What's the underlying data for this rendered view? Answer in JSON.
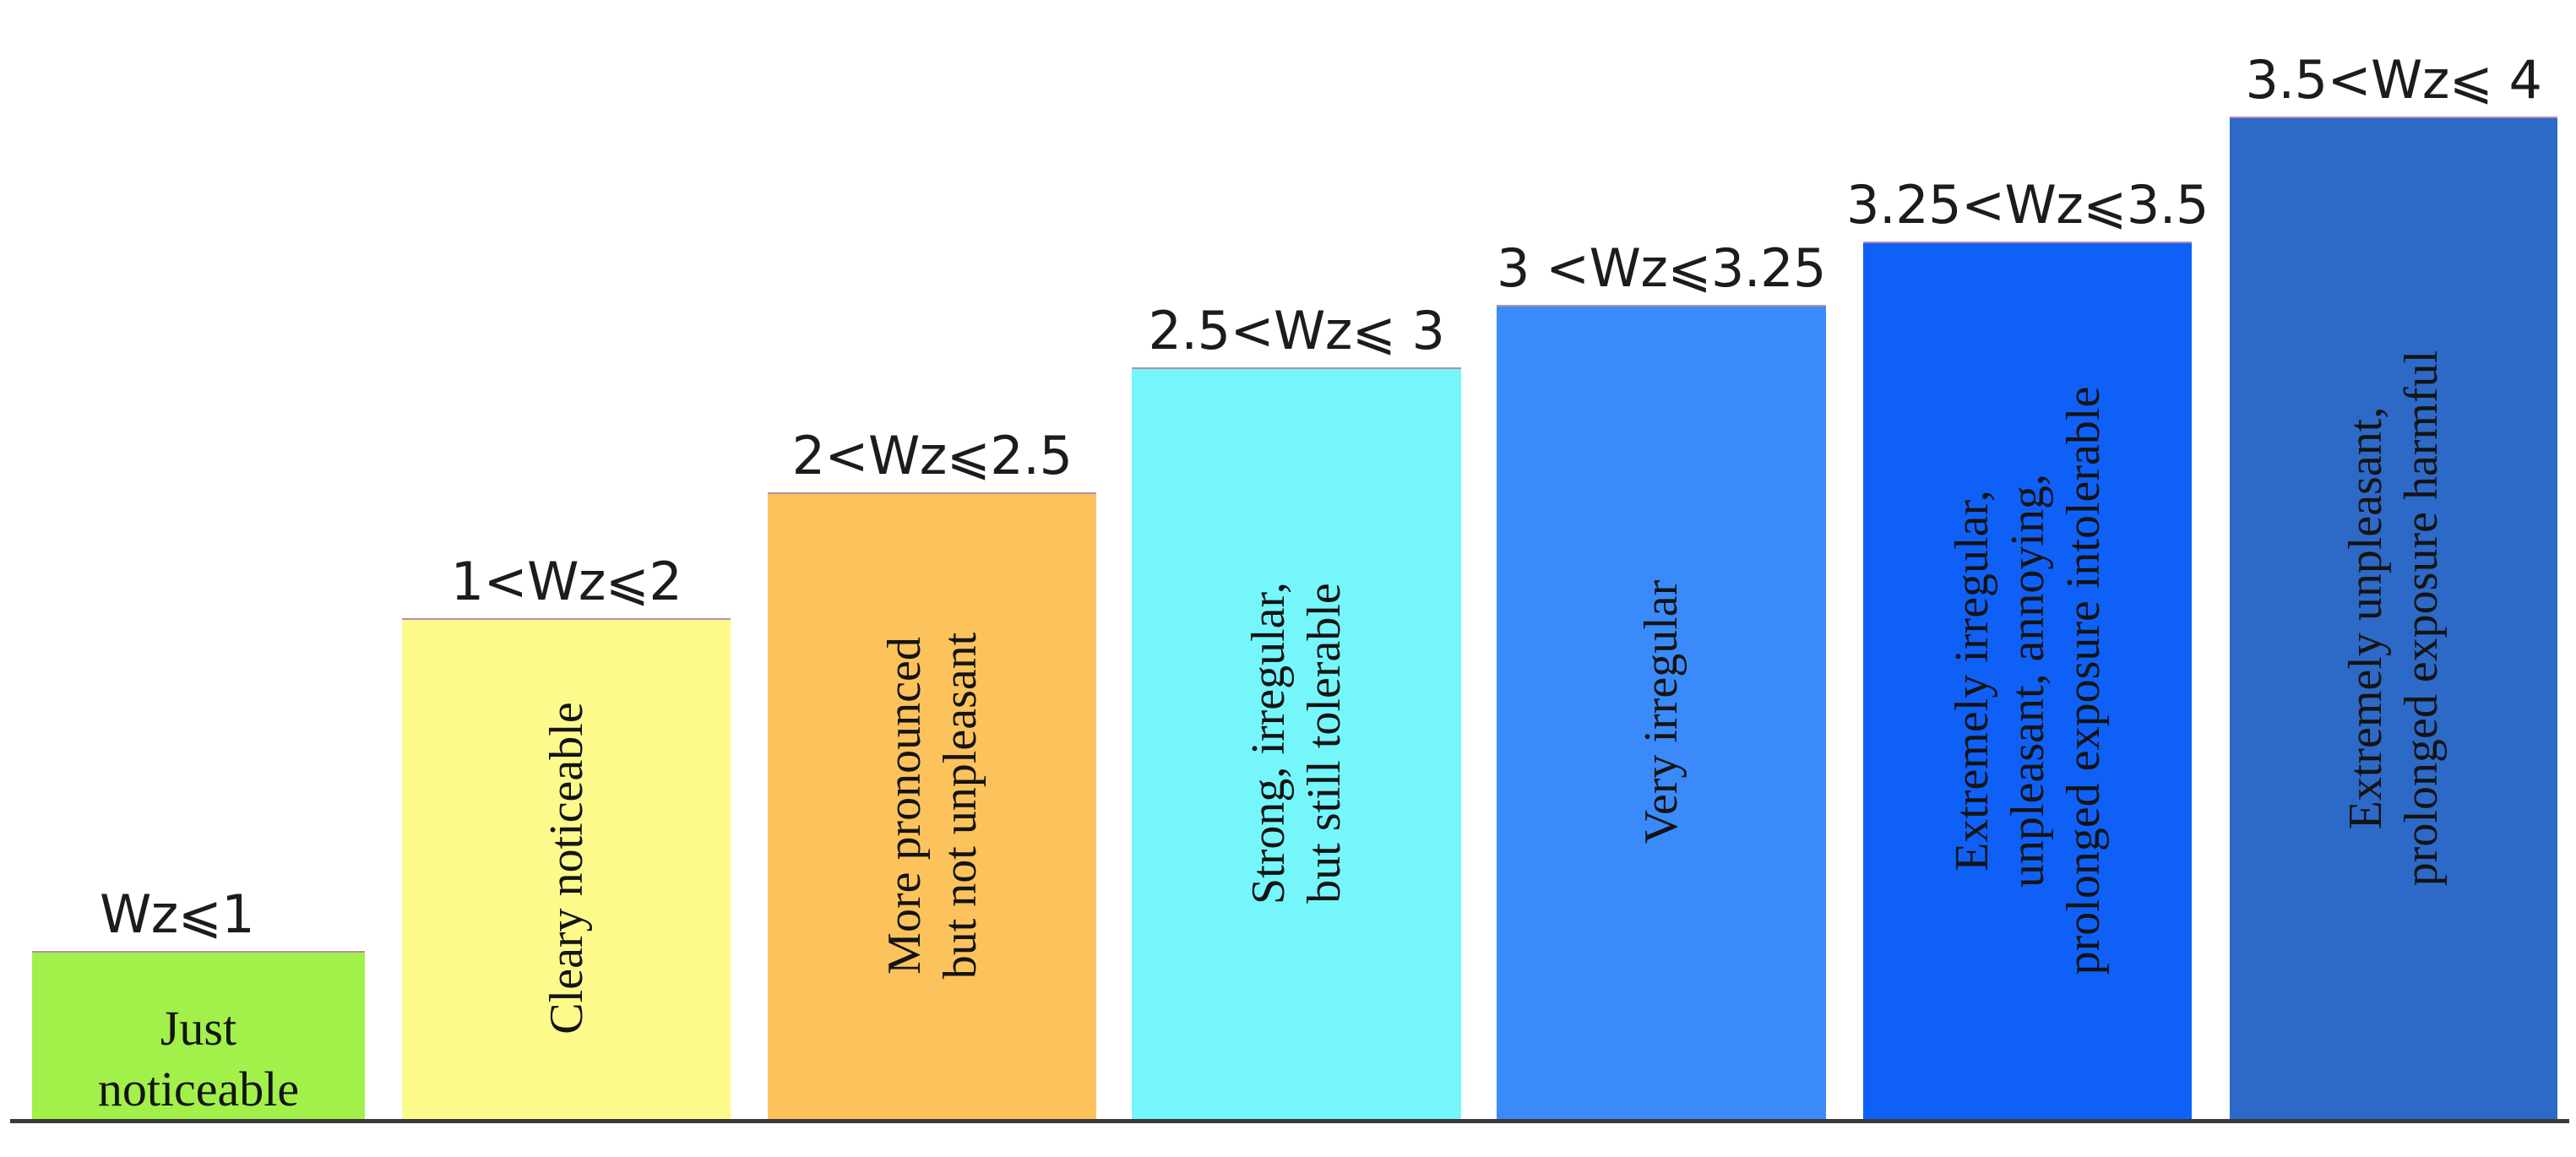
{
  "chart_data": {
    "type": "bar",
    "title": "",
    "xlabel": "",
    "ylabel": "",
    "ylim": [
      0,
      4
    ],
    "categories": [
      "Wz⩽1",
      "1<Wz⩽2",
      "2<Wz⩽2.5",
      "2.5<Wz⩽ 3",
      "3 <Wz⩽3.25",
      "3.25<Wz⩽3.5",
      "3.5<Wz⩽ 4"
    ],
    "values": [
      1,
      2,
      2.5,
      3,
      3.25,
      3.5,
      4
    ],
    "bars": [
      {
        "range_label": "Wz⩽1",
        "upper_bound": 1,
        "color": "#a2f04a",
        "description_lines": [
          "Just",
          "noticeable"
        ],
        "orientation": "horizontal"
      },
      {
        "range_label": "1<Wz⩽2",
        "upper_bound": 2,
        "color": "#fdfa8c",
        "description_lines": [
          "Cleary noticeable"
        ],
        "orientation": "vertical"
      },
      {
        "range_label": "2<Wz⩽2.5",
        "upper_bound": 2.5,
        "color": "#fcc35c",
        "description_lines": [
          "More pronounced",
          "but not unpleasant"
        ],
        "orientation": "vertical"
      },
      {
        "range_label": "2.5<Wz⩽ 3",
        "upper_bound": 3,
        "color": "#74f6fb",
        "description_lines": [
          "Strong, irregular,",
          "but still tolerable"
        ],
        "orientation": "vertical"
      },
      {
        "range_label": "3 <Wz⩽3.25",
        "upper_bound": 3.25,
        "color": "#3a8bf9",
        "description_lines": [
          "Very irregular"
        ],
        "orientation": "vertical"
      },
      {
        "range_label": "3.25<Wz⩽3.5",
        "upper_bound": 3.5,
        "color": "#0f60f7",
        "description_lines": [
          "Extremely irregular,",
          "unpleasant, annoying,",
          "prolonged exposure intolerable"
        ],
        "orientation": "vertical"
      },
      {
        "range_label": "3.5<Wz⩽ 4",
        "upper_bound": 4,
        "color": "#2d69c7",
        "description_lines": [
          "Extremely unpleasant,",
          "prolonged exposure harmful"
        ],
        "orientation": "vertical"
      }
    ],
    "grid": false,
    "legend": "none"
  }
}
